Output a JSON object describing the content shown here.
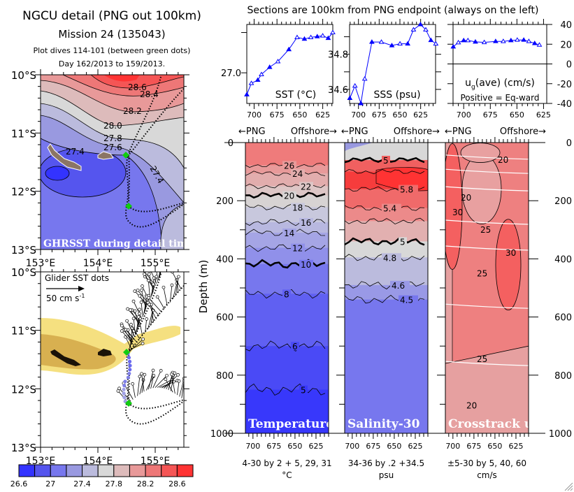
{
  "header": {
    "title": "NGCU detail (PNG out 100km)",
    "mission": "Mission 24 (135043)",
    "dives": "Plot dives 114-101 (between green dots)",
    "days": "Day 162/2013 to 159/2013.",
    "sections_title": "Sections are 100km from PNG endpoint (always on the left)"
  },
  "map_top": {
    "label": "GHRSST during detail time",
    "lat_labels": [
      "10°S",
      "11°S",
      "12°S",
      "13°S"
    ],
    "lon_labels": [
      "153°E",
      "154°E",
      "155°E"
    ],
    "contour_labels": [
      "28.6",
      "28.4",
      "28.2",
      "28.0",
      "27.8",
      "27.6",
      "27.4",
      "27.4"
    ]
  },
  "map_bottom": {
    "label": "Glider SST dots",
    "scale_label": "50 cm s",
    "scale_exp": "-1",
    "lat_labels": [
      "10°S",
      "11°S",
      "12°S",
      "13°S"
    ],
    "lon_labels": [
      "153°E",
      "154°E",
      "155°E"
    ]
  },
  "colorbar": {
    "labels": [
      "26.6",
      "27",
      "27.4",
      "27.8",
      "28.2",
      "28.6"
    ],
    "colors": [
      "#3333ff",
      "#5555ee",
      "#7777ee",
      "#9999e0",
      "#bbbbdd",
      "#d8d8d8",
      "#ddbbbb",
      "#e89999",
      "#ee7777",
      "#f55555",
      "#ff3333"
    ]
  },
  "direction_labels": {
    "left": "←PNG",
    "right": "Offshore→"
  },
  "depth_axis": {
    "label": "Depth (m)",
    "ticks": [
      "0",
      "200",
      "400",
      "600",
      "800",
      "1000"
    ]
  },
  "km_ticks": [
    "700",
    "675",
    "650",
    "625"
  ],
  "chart_data": [
    {
      "type": "line",
      "label": "SST (°C)",
      "ytick_labels": [
        "27.0"
      ],
      "xlim": [
        708,
        614
      ],
      "ylim": [
        26.62,
        27.6
      ],
      "color": "#0000ff",
      "x": [
        708,
        703,
        696,
        692,
        683,
        674,
        662,
        653,
        645,
        638,
        631,
        625,
        619,
        614
      ],
      "y": [
        26.73,
        26.87,
        26.91,
        26.98,
        27.07,
        27.14,
        27.29,
        27.44,
        27.42,
        27.44,
        27.45,
        27.46,
        27.43,
        27.5
      ]
    },
    {
      "type": "line",
      "label": "SSS (psu)",
      "ytick_labels": [
        "34.8",
        "34.6"
      ],
      "xlim": [
        710.7,
        607
      ],
      "ylim": [
        34.52,
        34.97
      ],
      "color": "#0000ff",
      "x": [
        710.4,
        704.2,
        697,
        692.4,
        683.8,
        672.3,
        659.7,
        649.9,
        640.6,
        633.6,
        625.2,
        618.8,
        612.6,
        606.7
      ],
      "y": [
        34.55,
        34.62,
        34.52,
        34.66,
        34.87,
        34.87,
        34.85,
        34.86,
        34.86,
        34.94,
        34.97,
        34.94,
        34.88,
        34.86
      ]
    },
    {
      "type": "line",
      "label": "u",
      "label_sub": "g",
      "label_rest": "(ave) (cm/s)",
      "note": "Positive = Eq-ward",
      "ytick_labels": [
        "40",
        "20",
        "0",
        "-20",
        "-40"
      ],
      "xlim": [
        710,
        622
      ],
      "ylim": [
        -40,
        40
      ],
      "color": "#0000ff",
      "x": [
        709.8,
        705,
        700,
        696,
        689,
        680.7,
        670,
        662.8,
        655.6,
        649.7,
        643.6,
        638.8,
        633.3,
        628.9
      ],
      "y": [
        17.4,
        21.7,
        23.8,
        23.8,
        22.4,
        21.9,
        22.9,
        22.9,
        23.8,
        24.3,
        24.3,
        22.9,
        20.9,
        19.3
      ]
    },
    {
      "type": "heatmap",
      "label": "Temperature",
      "caption": "4-30 by 2 + 5, 29, 31",
      "units": "°C",
      "ylim": [
        0,
        1000
      ],
      "xlim": [
        709,
        610
      ],
      "contours": [
        {
          "level": "26",
          "depth": 78
        },
        {
          "level": "24",
          "depth": 106
        },
        {
          "level": "22",
          "depth": 150
        },
        {
          "level": "20",
          "depth": 182,
          "bold": true
        },
        {
          "level": "18",
          "depth": 222
        },
        {
          "level": "16",
          "depth": 274
        },
        {
          "level": "14",
          "depth": 310
        },
        {
          "level": "12",
          "depth": 362
        },
        {
          "level": "10",
          "depth": 418,
          "bold": true
        },
        {
          "level": "8",
          "depth": 520
        },
        {
          "level": "6",
          "depth": 700
        },
        {
          "level": "5",
          "depth": 850
        }
      ],
      "band_colors": [
        "#ef7b7b",
        "#e89a9a",
        "#e2adad",
        "#ddc6c6",
        "#d7d3d3",
        "#c8c8dd",
        "#b8b8e0",
        "#a5a5e5",
        "#9090ea",
        "#7777ee",
        "#6060f2",
        "#4a4af6",
        "#3838fb"
      ]
    },
    {
      "type": "heatmap",
      "label": "Salinity-30",
      "caption": "34-36 by .2 +34.5",
      "units": "psu",
      "ylim": [
        0,
        1000
      ],
      "xlim": [
        709,
        610
      ],
      "contours": [
        {
          "level": "5",
          "depth": 60,
          "bold": true
        },
        {
          "level": "",
          "depth": 100
        },
        {
          "level": "5.8",
          "depth": 160
        },
        {
          "level": "5.4",
          "depth": 225
        },
        {
          "level": "",
          "depth": 270
        },
        {
          "level": "5",
          "depth": 340,
          "bold": true
        },
        {
          "level": "4.8",
          "depth": 395
        },
        {
          "level": "4.6",
          "depth": 490
        },
        {
          "level": "4.5",
          "depth": 540
        }
      ],
      "band_colors": [
        "#d8d8d8",
        "#f06060",
        "#f63c3c",
        "#f06a6a",
        "#ec8a8a",
        "#e2b0b0",
        "#d8d8d8",
        "#bbbbdd",
        "#9999e6",
        "#7777ee"
      ]
    },
    {
      "type": "heatmap",
      "label": "Crosstrack u",
      "label_sub": "g",
      "caption": "±5-30 by 5, 40, 60",
      "units": "cm/s",
      "ylim": [
        0,
        1000
      ],
      "xlim": [
        709,
        610
      ],
      "contour_labels": [
        "20",
        "20",
        "30",
        "25",
        "30",
        "25",
        "25",
        "20"
      ]
    }
  ]
}
